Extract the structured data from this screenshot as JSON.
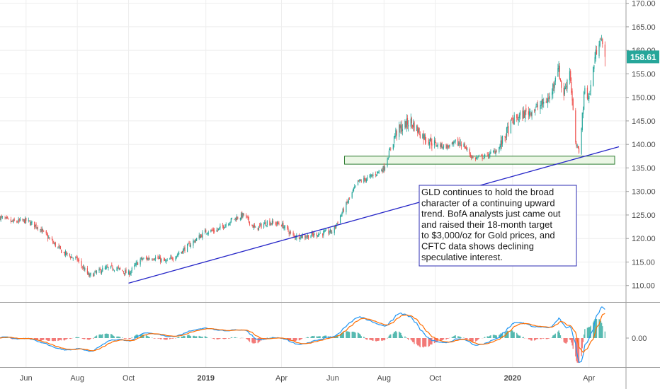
{
  "chart_data": {
    "type": "candlestick",
    "price_axis": {
      "ticks": [
        {
          "value": 110,
          "label": "110.00"
        },
        {
          "value": 115,
          "label": "115.00"
        },
        {
          "value": 120,
          "label": "120.00"
        },
        {
          "value": 125,
          "label": "125.00"
        },
        {
          "value": 130,
          "label": "130.00"
        },
        {
          "value": 135,
          "label": "135.00"
        },
        {
          "value": 140,
          "label": "140.00"
        },
        {
          "value": 145,
          "label": "145.00"
        },
        {
          "value": 150,
          "label": "150.00"
        },
        {
          "value": 155,
          "label": "155.00"
        },
        {
          "value": 160,
          "label": "160.00"
        },
        {
          "value": 165,
          "label": "165.00"
        },
        {
          "value": 170,
          "label": "170.00"
        }
      ],
      "range": [
        106.5,
        170.7
      ]
    },
    "last_price": {
      "value": 158.61,
      "label": "158.61",
      "color": "#26a69a"
    },
    "time_axis": {
      "range": [
        "2018-05-01",
        "2020-05-15"
      ],
      "ticks": [
        {
          "date": "2018-06-01",
          "label": "Jun",
          "bold": false
        },
        {
          "date": "2018-08-01",
          "label": "Aug",
          "bold": false
        },
        {
          "date": "2018-10-01",
          "label": "Oct",
          "bold": false
        },
        {
          "date": "2019-01-01",
          "label": "2019",
          "bold": true
        },
        {
          "date": "2019-04-01",
          "label": "Apr",
          "bold": false
        },
        {
          "date": "2019-06-01",
          "label": "Jun",
          "bold": false
        },
        {
          "date": "2019-08-01",
          "label": "Aug",
          "bold": false
        },
        {
          "date": "2019-10-01",
          "label": "Oct",
          "bold": false
        },
        {
          "date": "2020-01-01",
          "label": "2020",
          "bold": true
        },
        {
          "date": "2020-04-01",
          "label": "Apr",
          "bold": false
        }
      ]
    },
    "price_path": [
      [
        "2018-05-01",
        124.5
      ],
      [
        "2018-05-15",
        123.5
      ],
      [
        "2018-06-01",
        123.8
      ],
      [
        "2018-06-15",
        122.5
      ],
      [
        "2018-07-01",
        119.5
      ],
      [
        "2018-07-15",
        117.0
      ],
      [
        "2018-08-01",
        115.5
      ],
      [
        "2018-08-15",
        112.0
      ],
      [
        "2018-09-01",
        113.5
      ],
      [
        "2018-09-15",
        113.8
      ],
      [
        "2018-10-01",
        112.5
      ],
      [
        "2018-10-15",
        115.5
      ],
      [
        "2018-11-01",
        116.0
      ],
      [
        "2018-11-15",
        115.0
      ],
      [
        "2018-12-01",
        117.0
      ],
      [
        "2018-12-15",
        119.0
      ],
      [
        "2019-01-01",
        121.5
      ],
      [
        "2019-01-15",
        121.8
      ],
      [
        "2019-02-01",
        124.0
      ],
      [
        "2019-02-15",
        125.0
      ],
      [
        "2019-03-01",
        122.0
      ],
      [
        "2019-03-15",
        123.5
      ],
      [
        "2019-04-01",
        123.0
      ],
      [
        "2019-04-15",
        120.5
      ],
      [
        "2019-05-01",
        120.5
      ],
      [
        "2019-05-15",
        121.0
      ],
      [
        "2019-06-01",
        121.5
      ],
      [
        "2019-06-15",
        126.5
      ],
      [
        "2019-07-01",
        132.0
      ],
      [
        "2019-07-15",
        133.0
      ],
      [
        "2019-08-01",
        135.0
      ],
      [
        "2019-08-15",
        142.5
      ],
      [
        "2019-09-01",
        145.0
      ],
      [
        "2019-09-15",
        142.0
      ],
      [
        "2019-10-01",
        140.0
      ],
      [
        "2019-10-15",
        139.5
      ],
      [
        "2019-11-01",
        140.5
      ],
      [
        "2019-11-15",
        137.0
      ],
      [
        "2019-12-01",
        137.5
      ],
      [
        "2019-12-15",
        139.0
      ],
      [
        "2020-01-01",
        145.0
      ],
      [
        "2020-01-15",
        146.5
      ],
      [
        "2020-02-01",
        148.0
      ],
      [
        "2020-02-15",
        150.0
      ],
      [
        "2020-02-24",
        157.0
      ],
      [
        "2020-03-01",
        150.0
      ],
      [
        "2020-03-09",
        156.0
      ],
      [
        "2020-03-16",
        140.0
      ],
      [
        "2020-03-20",
        138.5
      ],
      [
        "2020-03-27",
        152.0
      ],
      [
        "2020-04-01",
        150.0
      ],
      [
        "2020-04-08",
        158.5
      ],
      [
        "2020-04-14",
        163.0
      ],
      [
        "2020-04-20",
        158.61
      ]
    ],
    "trendline": {
      "from": [
        "2018-10-01",
        110.5
      ],
      "to": [
        "2020-05-15",
        139.5
      ],
      "color": "#2727c8"
    },
    "support_zone": {
      "from": "2019-06-15",
      "to": "2020-05-15",
      "low": 135.8,
      "high": 137.5,
      "fill": "#e8f5e0",
      "stroke": "#2e7d32"
    },
    "annotation": {
      "lines": [
        "GLD continues to hold the broad",
        "character of a continuing upward",
        "trend. BofA analysts just came out",
        "and raised their 18-month target",
        "to $3,000/oz for Gold prices, and",
        "CFTC data shows declining",
        "speculative interest."
      ],
      "border_color": "#2b2bb3"
    },
    "indicator": {
      "name": "MACD",
      "zero_label": "0.00",
      "macd_color": "#2196f3",
      "signal_color": "#ff6d00",
      "hist_up_color": "#26a69a",
      "hist_down_color": "#ef5350"
    },
    "colors": {
      "up": "#26a69a",
      "down": "#ef5350"
    }
  }
}
